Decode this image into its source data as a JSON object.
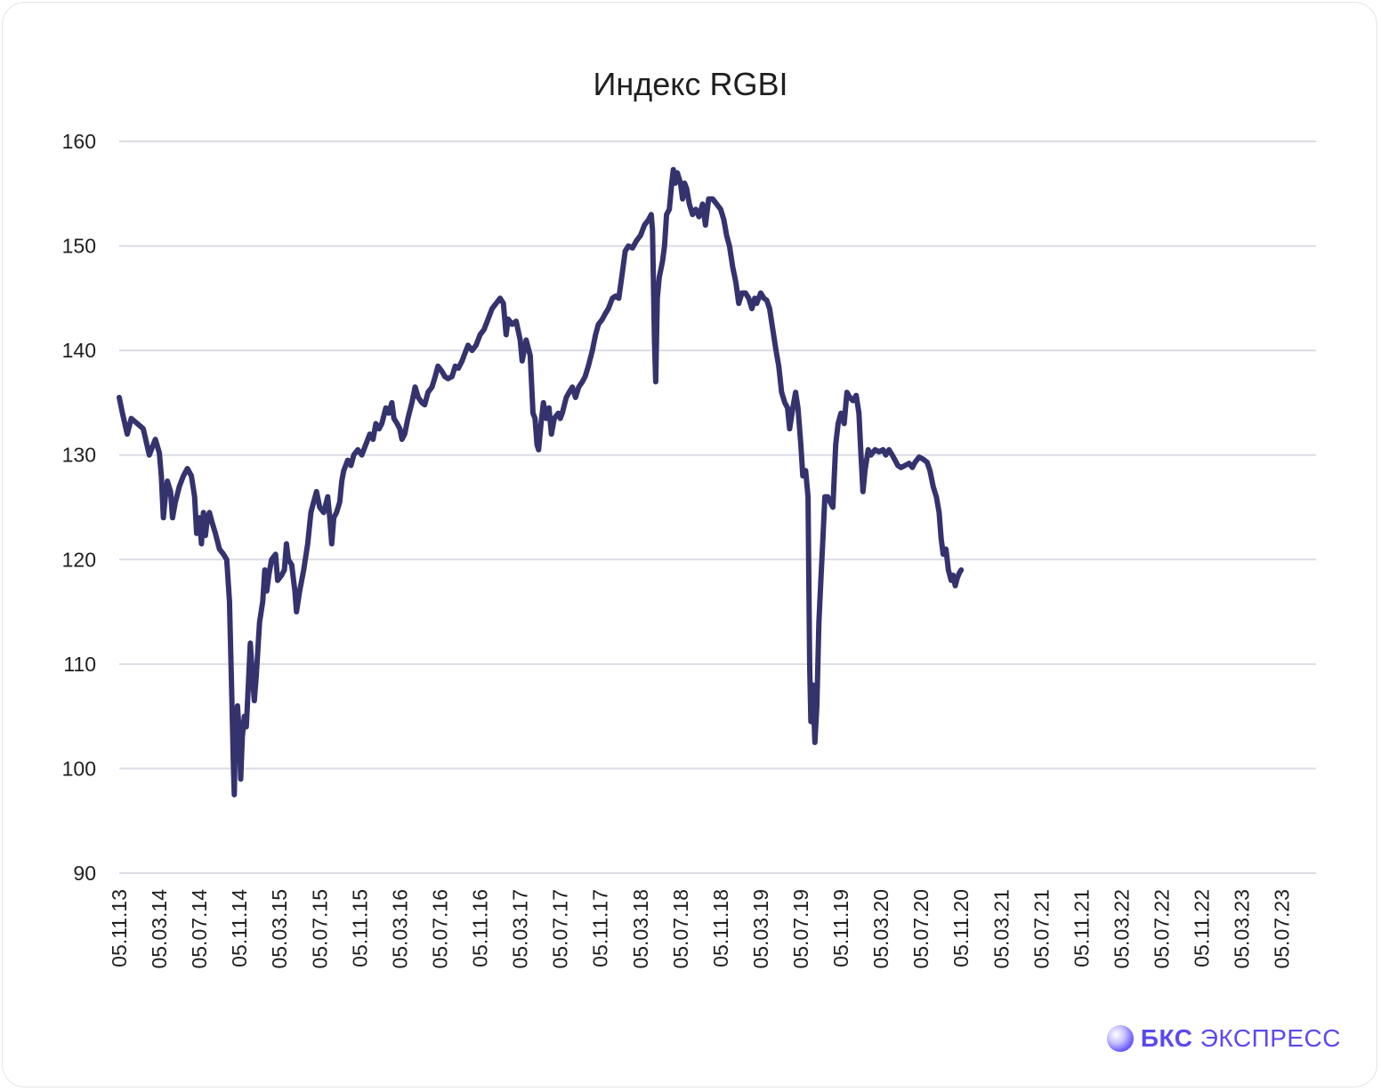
{
  "chart_data": {
    "type": "line",
    "title": "Индекс RGBI",
    "xlabel": "",
    "ylabel": "",
    "ylim": [
      90,
      160
    ],
    "yticks": [
      "90",
      "100",
      "110",
      "120",
      "130",
      "140",
      "150",
      "160"
    ],
    "categories": [
      "05.11.13",
      "05.03.14",
      "05.07.14",
      "05.11.14",
      "05.03.15",
      "05.07.15",
      "05.11.15",
      "05.03.16",
      "05.07.16",
      "05.11.16",
      "05.03.17",
      "05.07.17",
      "05.11.17",
      "05.03.18",
      "05.07.18",
      "05.11.18",
      "05.03.19",
      "05.07.19",
      "05.11.19",
      "05.03.20",
      "05.07.20",
      "05.11.20",
      "05.03.21",
      "05.07.21",
      "05.11.21",
      "05.03.22",
      "05.07.22",
      "05.11.22",
      "05.03.23",
      "05.07.23"
    ],
    "grid": true,
    "legend": "none",
    "series": [
      {
        "color": "#34336e",
        "points": [
          [
            0,
            135.5
          ],
          [
            0.08,
            134
          ],
          [
            0.2,
            132
          ],
          [
            0.3,
            133.5
          ],
          [
            0.45,
            133
          ],
          [
            0.6,
            132.5
          ],
          [
            0.75,
            130
          ],
          [
            0.9,
            131.5
          ],
          [
            1.0,
            130.2
          ],
          [
            1.05,
            128
          ],
          [
            1.1,
            124
          ],
          [
            1.15,
            126
          ],
          [
            1.2,
            127.5
          ],
          [
            1.28,
            126.5
          ],
          [
            1.33,
            124
          ],
          [
            1.4,
            125.5
          ],
          [
            1.5,
            127
          ],
          [
            1.6,
            128
          ],
          [
            1.7,
            128.7
          ],
          [
            1.8,
            128
          ],
          [
            1.88,
            126
          ],
          [
            1.93,
            122.5
          ],
          [
            2.0,
            124
          ],
          [
            2.05,
            121.5
          ],
          [
            2.1,
            124.5
          ],
          [
            2.15,
            122.3
          ],
          [
            2.2,
            124
          ],
          [
            2.25,
            124.5
          ],
          [
            2.32,
            123.5
          ],
          [
            2.4,
            122.5
          ],
          [
            2.5,
            121
          ],
          [
            2.6,
            120.5
          ],
          [
            2.68,
            120
          ],
          [
            2.75,
            116
          ],
          [
            2.8,
            108
          ],
          [
            2.85,
            100
          ],
          [
            2.87,
            97.5
          ],
          [
            2.9,
            104
          ],
          [
            2.95,
            106
          ],
          [
            3.0,
            103
          ],
          [
            3.03,
            99
          ],
          [
            3.07,
            103
          ],
          [
            3.12,
            105
          ],
          [
            3.17,
            104
          ],
          [
            3.22,
            108
          ],
          [
            3.27,
            112
          ],
          [
            3.32,
            109
          ],
          [
            3.37,
            106.5
          ],
          [
            3.42,
            109
          ],
          [
            3.5,
            114
          ],
          [
            3.58,
            116
          ],
          [
            3.63,
            119
          ],
          [
            3.68,
            117
          ],
          [
            3.73,
            118.5
          ],
          [
            3.8,
            120
          ],
          [
            3.9,
            120.5
          ],
          [
            3.95,
            118
          ],
          [
            4.05,
            118.5
          ],
          [
            4.12,
            119
          ],
          [
            4.17,
            121.5
          ],
          [
            4.22,
            120
          ],
          [
            4.3,
            119.5
          ],
          [
            4.38,
            117
          ],
          [
            4.42,
            115
          ],
          [
            4.5,
            117
          ],
          [
            4.6,
            119
          ],
          [
            4.7,
            121.5
          ],
          [
            4.78,
            124.5
          ],
          [
            4.85,
            125.5
          ],
          [
            4.92,
            126.5
          ],
          [
            5.0,
            125
          ],
          [
            5.1,
            124.5
          ],
          [
            5.2,
            126
          ],
          [
            5.25,
            124
          ],
          [
            5.3,
            121.5
          ],
          [
            5.35,
            124
          ],
          [
            5.42,
            124.5
          ],
          [
            5.5,
            125.5
          ],
          [
            5.55,
            127.5
          ],
          [
            5.6,
            128.5
          ],
          [
            5.7,
            129.5
          ],
          [
            5.78,
            129
          ],
          [
            5.85,
            130
          ],
          [
            5.95,
            130.5
          ],
          [
            6.05,
            130
          ],
          [
            6.15,
            131
          ],
          [
            6.25,
            132
          ],
          [
            6.33,
            131.5
          ],
          [
            6.4,
            133
          ],
          [
            6.48,
            132.5
          ],
          [
            6.55,
            133
          ],
          [
            6.65,
            134.5
          ],
          [
            6.72,
            134
          ],
          [
            6.8,
            135
          ],
          [
            6.85,
            133.5
          ],
          [
            6.93,
            133
          ],
          [
            7.0,
            132.5
          ],
          [
            7.05,
            131.5
          ],
          [
            7.12,
            132
          ],
          [
            7.2,
            133.5
          ],
          [
            7.3,
            135
          ],
          [
            7.38,
            136.5
          ],
          [
            7.46,
            135.5
          ],
          [
            7.55,
            135
          ],
          [
            7.62,
            134.8
          ],
          [
            7.7,
            136
          ],
          [
            7.8,
            136.5
          ],
          [
            7.88,
            137.5
          ],
          [
            7.95,
            138.5
          ],
          [
            8.05,
            138
          ],
          [
            8.12,
            137.5
          ],
          [
            8.2,
            137.3
          ],
          [
            8.3,
            137.5
          ],
          [
            8.38,
            138.5
          ],
          [
            8.46,
            138.3
          ],
          [
            8.55,
            139
          ],
          [
            8.6,
            139.5
          ],
          [
            8.7,
            140.5
          ],
          [
            8.8,
            140
          ],
          [
            8.9,
            140.5
          ],
          [
            9.0,
            141.5
          ],
          [
            9.1,
            142
          ],
          [
            9.2,
            143
          ],
          [
            9.3,
            144
          ],
          [
            9.4,
            144.5
          ],
          [
            9.5,
            145
          ],
          [
            9.58,
            144.5
          ],
          [
            9.65,
            141.5
          ],
          [
            9.7,
            143
          ],
          [
            9.8,
            142.5
          ],
          [
            9.9,
            142.8
          ],
          [
            10.0,
            141
          ],
          [
            10.05,
            139
          ],
          [
            10.1,
            140
          ],
          [
            10.15,
            141
          ],
          [
            10.25,
            139.5
          ],
          [
            10.32,
            134
          ],
          [
            10.37,
            133.5
          ],
          [
            10.42,
            131
          ],
          [
            10.46,
            130.5
          ],
          [
            10.52,
            133
          ],
          [
            10.58,
            135
          ],
          [
            10.65,
            133.5
          ],
          [
            10.72,
            134.5
          ],
          [
            10.78,
            132
          ],
          [
            10.85,
            133.5
          ],
          [
            10.95,
            134
          ],
          [
            11.0,
            133.5
          ],
          [
            11.05,
            134
          ],
          [
            11.15,
            135.5
          ],
          [
            11.22,
            136
          ],
          [
            11.3,
            136.5
          ],
          [
            11.38,
            135.5
          ],
          [
            11.46,
            136.5
          ],
          [
            11.55,
            137
          ],
          [
            11.62,
            137.5
          ],
          [
            11.7,
            138.5
          ],
          [
            11.8,
            140
          ],
          [
            11.88,
            141.5
          ],
          [
            11.95,
            142.5
          ],
          [
            12.05,
            143
          ],
          [
            12.12,
            143.5
          ],
          [
            12.2,
            144
          ],
          [
            12.3,
            145
          ],
          [
            12.38,
            145.2
          ],
          [
            12.46,
            145
          ],
          [
            12.55,
            147.5
          ],
          [
            12.62,
            149.5
          ],
          [
            12.7,
            150
          ],
          [
            12.8,
            149.8
          ],
          [
            12.9,
            150.5
          ],
          [
            13.0,
            151
          ],
          [
            13.1,
            152
          ],
          [
            13.2,
            152.5
          ],
          [
            13.27,
            153
          ],
          [
            13.3,
            151.5
          ],
          [
            13.35,
            141
          ],
          [
            13.38,
            137
          ],
          [
            13.42,
            145
          ],
          [
            13.47,
            147
          ],
          [
            13.55,
            148.5
          ],
          [
            13.6,
            150
          ],
          [
            13.65,
            153
          ],
          [
            13.72,
            153.5
          ],
          [
            13.78,
            156
          ],
          [
            13.82,
            157.3
          ],
          [
            13.87,
            156
          ],
          [
            13.92,
            157
          ],
          [
            14.0,
            156
          ],
          [
            14.05,
            154.5
          ],
          [
            14.1,
            156
          ],
          [
            14.15,
            155.5
          ],
          [
            14.22,
            154
          ],
          [
            14.3,
            153
          ],
          [
            14.38,
            153.5
          ],
          [
            14.46,
            152.8
          ],
          [
            14.55,
            154
          ],
          [
            14.62,
            152
          ],
          [
            14.7,
            154.5
          ],
          [
            14.8,
            154.5
          ],
          [
            14.9,
            154
          ],
          [
            15.0,
            153.5
          ],
          [
            15.08,
            152.5
          ],
          [
            15.15,
            151
          ],
          [
            15.22,
            150
          ],
          [
            15.3,
            148
          ],
          [
            15.38,
            146.5
          ],
          [
            15.45,
            144.5
          ],
          [
            15.53,
            145.5
          ],
          [
            15.62,
            145.5
          ],
          [
            15.7,
            145
          ],
          [
            15.78,
            144
          ],
          [
            15.85,
            145
          ],
          [
            15.9,
            144.5
          ],
          [
            16.0,
            145.5
          ],
          [
            16.08,
            145
          ],
          [
            16.15,
            144.8
          ],
          [
            16.22,
            144
          ],
          [
            16.3,
            142
          ],
          [
            16.38,
            140
          ],
          [
            16.45,
            138.5
          ],
          [
            16.52,
            136
          ],
          [
            16.6,
            135
          ],
          [
            16.67,
            134.5
          ],
          [
            16.72,
            132.5
          ],
          [
            16.8,
            134.5
          ],
          [
            16.87,
            136
          ],
          [
            16.93,
            134.5
          ],
          [
            17.0,
            131
          ],
          [
            17.05,
            128
          ],
          [
            17.12,
            128.5
          ],
          [
            17.18,
            126
          ],
          [
            17.22,
            110
          ],
          [
            17.25,
            104.5
          ],
          [
            17.3,
            108
          ],
          [
            17.35,
            102.5
          ],
          [
            17.4,
            106
          ],
          [
            17.45,
            114
          ],
          [
            17.5,
            118
          ],
          [
            17.55,
            122
          ],
          [
            17.6,
            126
          ],
          [
            17.67,
            126
          ],
          [
            17.73,
            125.5
          ],
          [
            17.8,
            125
          ],
          [
            17.87,
            131
          ],
          [
            17.93,
            133
          ],
          [
            18.0,
            134
          ],
          [
            18.08,
            133
          ],
          [
            18.15,
            136
          ],
          [
            18.22,
            135.5
          ],
          [
            18.3,
            135.2
          ],
          [
            18.38,
            135.7
          ],
          [
            18.45,
            134
          ],
          [
            18.5,
            130
          ],
          [
            18.55,
            126.5
          ],
          [
            18.6,
            128.5
          ],
          [
            18.68,
            130.5
          ],
          [
            18.75,
            130
          ],
          [
            18.85,
            130.5
          ],
          [
            18.95,
            130.3
          ],
          [
            19.05,
            130.5
          ],
          [
            19.12,
            130
          ],
          [
            19.2,
            130.5
          ],
          [
            19.28,
            130
          ],
          [
            19.35,
            129.5
          ],
          [
            19.42,
            129
          ],
          [
            19.5,
            128.8
          ],
          [
            19.6,
            129
          ],
          [
            19.7,
            129.2
          ],
          [
            19.78,
            128.8
          ],
          [
            19.85,
            129.3
          ],
          [
            19.95,
            129.8
          ],
          [
            20.05,
            129.6
          ],
          [
            20.15,
            129.3
          ],
          [
            20.22,
            128.5
          ],
          [
            20.3,
            127
          ],
          [
            20.38,
            126
          ],
          [
            20.45,
            124.5
          ],
          [
            20.5,
            122
          ],
          [
            20.55,
            120.5
          ],
          [
            20.62,
            121
          ],
          [
            20.68,
            119
          ],
          [
            20.75,
            118
          ],
          [
            20.8,
            118.5
          ],
          [
            20.85,
            117.5
          ],
          [
            20.9,
            118.2
          ],
          [
            20.95,
            118.7
          ],
          [
            21.0,
            119
          ]
        ]
      }
    ]
  },
  "brand": {
    "name_bold": "БКС",
    "name_rest": "ЭКСПРЕСС"
  }
}
